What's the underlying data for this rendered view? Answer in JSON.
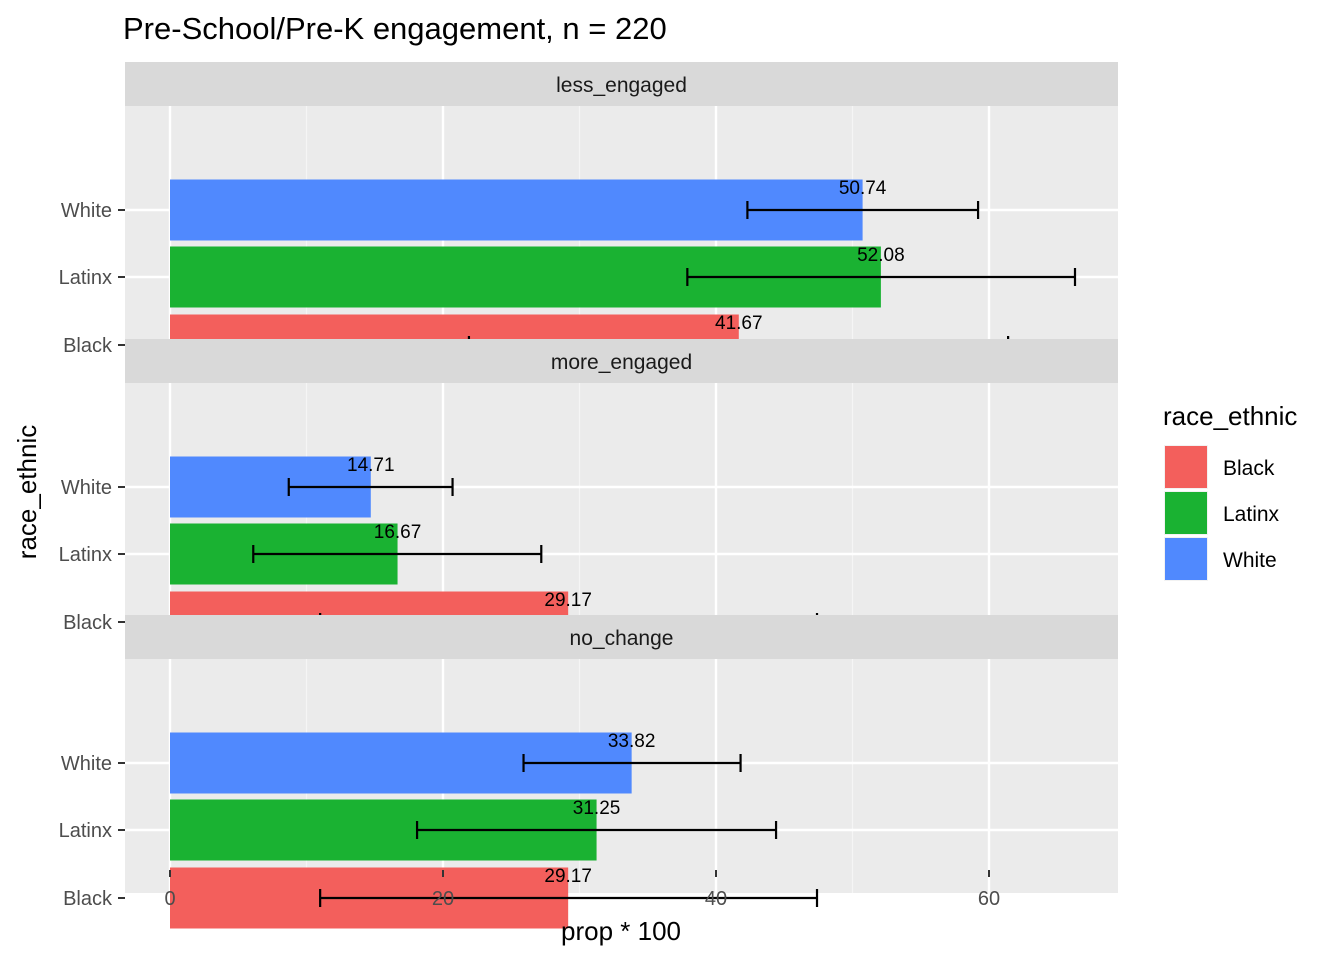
{
  "chart_data": {
    "type": "bar",
    "orientation": "horizontal",
    "title": "Pre-School/Pre-K engagement, n = 220",
    "xlabel": "prop * 100",
    "ylabel": "race_ethnic",
    "xlim": [
      0,
      68
    ],
    "x_ticks": [
      "0",
      "20",
      "40",
      "60"
    ],
    "categories": [
      "White",
      "Latinx",
      "Black"
    ],
    "grid": true,
    "legend": {
      "title": "race_ethnic",
      "position": "right",
      "entries": [
        {
          "label": "Black",
          "color": "#F8766D"
        },
        {
          "label": "Latinx",
          "color": "#00BA38"
        },
        {
          "label": "White",
          "color": "#619CFF"
        }
      ]
    },
    "colors": {
      "Black": "#F35F5C",
      "Latinx": "#1AB232",
      "White": "#5089FE"
    },
    "panels": [
      {
        "name": "less_engaged",
        "bars": [
          {
            "category": "White",
            "value": 50.74,
            "label": "50.74",
            "ci": [
              42.3,
              59.2
            ]
          },
          {
            "category": "Latinx",
            "value": 52.08,
            "label": "52.08",
            "ci": [
              37.9,
              66.3
            ]
          },
          {
            "category": "Black",
            "value": 41.67,
            "label": "41.67",
            "ci": [
              21.9,
              61.4
            ]
          }
        ]
      },
      {
        "name": "more_engaged",
        "bars": [
          {
            "category": "White",
            "value": 14.71,
            "label": "14.71",
            "ci": [
              8.7,
              20.7
            ]
          },
          {
            "category": "Latinx",
            "value": 16.67,
            "label": "16.67",
            "ci": [
              6.1,
              27.2
            ]
          },
          {
            "category": "Black",
            "value": 29.17,
            "label": "29.17",
            "ci": [
              11.0,
              47.4
            ]
          }
        ]
      },
      {
        "name": "no_change",
        "bars": [
          {
            "category": "White",
            "value": 33.82,
            "label": "33.82",
            "ci": [
              25.9,
              41.8
            ]
          },
          {
            "category": "Latinx",
            "value": 31.25,
            "label": "31.25",
            "ci": [
              18.1,
              44.4
            ]
          },
          {
            "category": "Black",
            "value": 29.17,
            "label": "29.17",
            "ci": [
              11.0,
              47.4
            ]
          }
        ]
      }
    ]
  }
}
